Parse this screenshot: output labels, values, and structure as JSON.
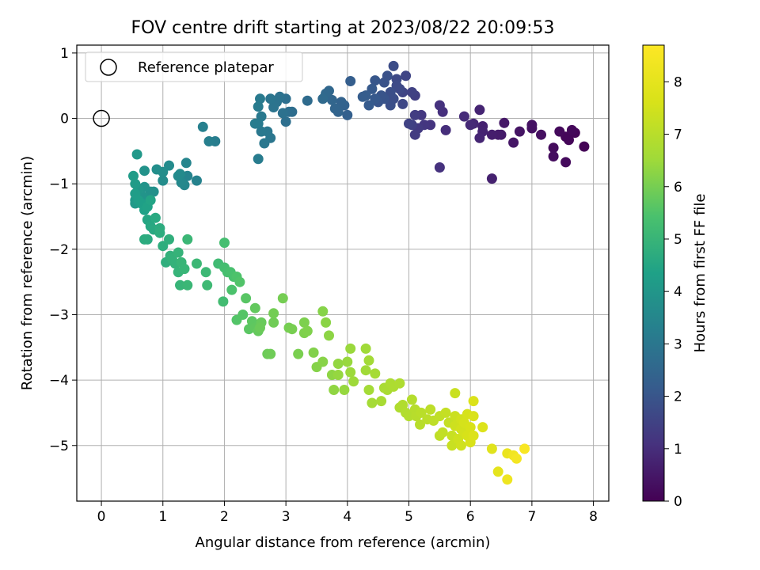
{
  "chart_data": {
    "type": "scatter",
    "title": "FOV centre drift starting at 2023/08/22 20:09:53",
    "xlabel": "Angular distance from reference (arcmin)",
    "ylabel": "Rotation from reference (arcmin)",
    "xlim": [
      -0.4,
      8.25
    ],
    "ylim": [
      -5.85,
      1.12
    ],
    "xticks": [
      "0",
      "1",
      "2",
      "3",
      "4",
      "5",
      "6",
      "7",
      "8"
    ],
    "yticks": [
      "1",
      "0",
      "−1",
      "−2",
      "−3",
      "−4",
      "−5"
    ],
    "grid": true,
    "legend": {
      "position": "top-left",
      "entries": [
        "Reference platepar"
      ]
    },
    "reference_point": {
      "x": 0,
      "y": 0
    },
    "colorbar": {
      "label": "Hours from first FF file",
      "colormap": "viridis",
      "range": [
        0,
        8.7
      ],
      "ticks": [
        "0",
        "1",
        "2",
        "3",
        "4",
        "5",
        "6",
        "7",
        "8"
      ]
    },
    "points": [
      [
        7.85,
        -0.43,
        0.05
      ],
      [
        7.7,
        -0.22,
        0.08
      ],
      [
        7.6,
        -0.33,
        0.1
      ],
      [
        7.55,
        -0.28,
        0.12
      ],
      [
        7.65,
        -0.18,
        0.15
      ],
      [
        7.45,
        -0.2,
        0.18
      ],
      [
        7.55,
        -0.67,
        0.2
      ],
      [
        7.35,
        -0.45,
        0.22
      ],
      [
        7.35,
        -0.58,
        0.25
      ],
      [
        7.15,
        -0.25,
        0.3
      ],
      [
        7,
        -0.15,
        0.35
      ],
      [
        7,
        -0.1,
        0.38
      ],
      [
        6.8,
        -0.2,
        0.42
      ],
      [
        6.7,
        -0.37,
        0.46
      ],
      [
        6.55,
        -0.07,
        0.5
      ],
      [
        6.5,
        -0.25,
        0.55
      ],
      [
        6.45,
        -0.25,
        0.6
      ],
      [
        6.35,
        -0.25,
        0.65
      ],
      [
        6.35,
        -0.92,
        0.7
      ],
      [
        6.2,
        -0.12,
        0.72
      ],
      [
        6.2,
        -0.2,
        0.75
      ],
      [
        6.15,
        0.13,
        0.78
      ],
      [
        6.15,
        -0.3,
        0.8
      ],
      [
        6.05,
        -0.08,
        0.85
      ],
      [
        6,
        -0.1,
        0.9
      ],
      [
        5.9,
        0.03,
        0.95
      ],
      [
        5.6,
        -0.18,
        1.0
      ],
      [
        5.55,
        0.1,
        1.05
      ],
      [
        5.5,
        0.2,
        1.08
      ],
      [
        5.5,
        -0.75,
        1.1
      ],
      [
        5.35,
        -0.1,
        1.15
      ],
      [
        5.25,
        -0.1,
        1.2
      ],
      [
        5.2,
        0.05,
        1.25
      ],
      [
        5.15,
        -0.15,
        1.3
      ],
      [
        5.1,
        -0.25,
        1.33
      ],
      [
        5.1,
        0.05,
        1.36
      ],
      [
        5.1,
        0.35,
        1.4
      ],
      [
        5.05,
        -0.1,
        1.44
      ],
      [
        5.05,
        0.4,
        1.47
      ],
      [
        5,
        -0.08,
        1.5
      ],
      [
        4.9,
        0.4,
        1.55
      ],
      [
        4.95,
        0.65,
        1.58
      ],
      [
        4.9,
        0.22,
        1.62
      ],
      [
        4.85,
        0.45,
        1.65
      ],
      [
        4.8,
        0.6,
        1.68
      ],
      [
        4.8,
        0.5,
        1.72
      ],
      [
        4.75,
        0.8,
        1.75
      ],
      [
        4.75,
        0.3,
        1.78
      ],
      [
        4.7,
        0.4,
        1.82
      ],
      [
        4.7,
        0.2,
        1.85
      ],
      [
        4.65,
        0.65,
        1.88
      ],
      [
        4.6,
        0.55,
        1.92
      ],
      [
        4.6,
        0.3,
        1.95
      ],
      [
        4.55,
        0.35,
        1.98
      ],
      [
        4.5,
        0.25,
        2.0
      ],
      [
        4.45,
        0.58,
        2.05
      ],
      [
        4.45,
        0.3,
        2.1
      ],
      [
        4.4,
        0.45,
        2.12
      ],
      [
        4.35,
        0.2,
        2.15
      ],
      [
        4.3,
        0.35,
        2.2
      ],
      [
        4.25,
        0.33,
        2.22
      ],
      [
        4.05,
        0.57,
        2.25
      ],
      [
        4,
        0.05,
        2.3
      ],
      [
        3.95,
        0.2,
        2.35
      ],
      [
        3.9,
        0.25,
        2.38
      ],
      [
        3.85,
        0.1,
        2.42
      ],
      [
        3.8,
        0.15,
        2.45
      ],
      [
        3.75,
        0.28,
        2.48
      ],
      [
        3.7,
        0.42,
        2.52
      ],
      [
        3.65,
        0.38,
        2.56
      ],
      [
        3.6,
        0.3,
        2.6
      ],
      [
        3.35,
        0.27,
        2.65
      ],
      [
        3.1,
        0.1,
        2.7
      ],
      [
        3.05,
        0.1,
        2.72
      ],
      [
        3,
        0.3,
        2.75
      ],
      [
        3,
        -0.05,
        2.78
      ],
      [
        2.95,
        0.08,
        2.82
      ],
      [
        2.9,
        0.33,
        2.85
      ],
      [
        2.85,
        0.25,
        2.88
      ],
      [
        2.8,
        0.17,
        2.92
      ],
      [
        2.75,
        0.3,
        2.95
      ],
      [
        2.75,
        -0.3,
        2.98
      ],
      [
        2.7,
        -0.2,
        3.0
      ],
      [
        2.65,
        -0.38,
        3.02
      ],
      [
        2.6,
        -0.2,
        3.05
      ],
      [
        2.6,
        0.03,
        3.08
      ],
      [
        2.58,
        0.3,
        3.1
      ],
      [
        2.55,
        -0.08,
        3.12
      ],
      [
        2.55,
        0.18,
        3.14
      ],
      [
        2.55,
        -0.62,
        3.16
      ],
      [
        2.5,
        -0.08,
        3.18
      ],
      [
        1.85,
        -0.35,
        3.2
      ],
      [
        1.75,
        -0.35,
        3.25
      ],
      [
        1.65,
        -0.13,
        3.3
      ],
      [
        1.55,
        -0.95,
        3.35
      ],
      [
        1.4,
        -0.88,
        3.4
      ],
      [
        1.38,
        -0.68,
        3.45
      ],
      [
        1.35,
        -1.02,
        3.5
      ],
      [
        1.3,
        -0.98,
        3.55
      ],
      [
        1.28,
        -0.85,
        3.6
      ],
      [
        1.25,
        -0.88,
        3.62
      ],
      [
        1.1,
        -0.72,
        3.65
      ],
      [
        1.0,
        -0.95,
        3.68
      ],
      [
        1.0,
        -0.82,
        3.7
      ],
      [
        0.9,
        -0.78,
        3.75
      ],
      [
        0.85,
        -1.12,
        3.8
      ],
      [
        0.8,
        -1.12,
        3.85
      ],
      [
        0.7,
        -0.8,
        3.88
      ],
      [
        0.7,
        -1.05,
        3.9
      ],
      [
        0.68,
        -1.2,
        3.95
      ],
      [
        0.6,
        -1.08,
        4.0
      ],
      [
        0.58,
        -0.55,
        4.05
      ],
      [
        0.55,
        -1.3,
        4.08
      ],
      [
        0.55,
        -1.25,
        4.1
      ],
      [
        0.55,
        -1.0,
        4.15
      ],
      [
        0.52,
        -0.88,
        4.2
      ],
      [
        0.55,
        -1.15,
        4.22
      ],
      [
        0.6,
        -1.25,
        4.25
      ],
      [
        0.65,
        -1.3,
        4.3
      ],
      [
        0.7,
        -1.4,
        4.35
      ],
      [
        0.75,
        -1.35,
        4.4
      ],
      [
        0.8,
        -1.25,
        4.45
      ],
      [
        0.75,
        -1.55,
        4.5
      ],
      [
        0.8,
        -1.65,
        4.55
      ],
      [
        0.85,
        -1.7,
        4.6
      ],
      [
        0.88,
        -1.52,
        4.62
      ],
      [
        0.75,
        -1.85,
        4.65
      ],
      [
        0.7,
        -1.85,
        4.68
      ],
      [
        0.95,
        -1.68,
        4.7
      ],
      [
        0.95,
        -1.75,
        4.72
      ],
      [
        1.0,
        -1.95,
        4.75
      ],
      [
        1.05,
        -2.2,
        4.78
      ],
      [
        1.1,
        -1.85,
        4.8
      ],
      [
        1.12,
        -2.1,
        4.85
      ],
      [
        1.15,
        -2.15,
        4.88
      ],
      [
        1.2,
        -2.22,
        4.9
      ],
      [
        1.25,
        -2.05,
        4.92
      ],
      [
        1.25,
        -2.35,
        4.95
      ],
      [
        1.28,
        -2.55,
        4.98
      ],
      [
        1.3,
        -2.2,
        5.0
      ],
      [
        1.35,
        -2.3,
        5.02
      ],
      [
        1.4,
        -2.55,
        5.05
      ],
      [
        1.4,
        -1.85,
        5.08
      ],
      [
        1.55,
        -2.22,
        5.1
      ],
      [
        1.7,
        -2.35,
        5.12
      ],
      [
        1.72,
        -2.55,
        5.15
      ],
      [
        1.9,
        -2.22,
        5.2
      ],
      [
        1.98,
        -2.8,
        5.25
      ],
      [
        2.0,
        -2.28,
        5.3
      ],
      [
        2.0,
        -1.9,
        5.32
      ],
      [
        2.05,
        -2.35,
        5.35
      ],
      [
        2.1,
        -2.35,
        5.38
      ],
      [
        2.15,
        -2.42,
        5.42
      ],
      [
        2.12,
        -2.62,
        5.45
      ],
      [
        2.2,
        -2.42,
        5.48
      ],
      [
        2.25,
        -2.5,
        5.52
      ],
      [
        2.2,
        -3.08,
        5.55
      ],
      [
        2.3,
        -3.0,
        5.58
      ],
      [
        2.35,
        -2.75,
        5.62
      ],
      [
        2.4,
        -3.22,
        5.65
      ],
      [
        2.45,
        -3.1,
        5.68
      ],
      [
        2.5,
        -3.2,
        5.72
      ],
      [
        2.5,
        -2.9,
        5.75
      ],
      [
        2.55,
        -3.25,
        5.78
      ],
      [
        2.6,
        -3.12,
        5.82
      ],
      [
        2.58,
        -3.2,
        5.85
      ],
      [
        2.7,
        -3.6,
        5.88
      ],
      [
        2.75,
        -3.6,
        5.9
      ],
      [
        2.8,
        -3.12,
        5.92
      ],
      [
        2.8,
        -2.98,
        5.95
      ],
      [
        2.95,
        -2.75,
        5.98
      ],
      [
        3.05,
        -3.2,
        6.0
      ],
      [
        3.1,
        -3.22,
        6.02
      ],
      [
        3.2,
        -3.6,
        6.05
      ],
      [
        3.3,
        -3.12,
        6.08
      ],
      [
        3.3,
        -3.28,
        6.1
      ],
      [
        3.35,
        -3.25,
        6.12
      ],
      [
        3.45,
        -3.58,
        6.15
      ],
      [
        3.5,
        -3.8,
        6.18
      ],
      [
        3.6,
        -2.95,
        6.2
      ],
      [
        3.6,
        -3.72,
        6.22
      ],
      [
        3.65,
        -3.12,
        6.25
      ],
      [
        3.7,
        -3.32,
        6.28
      ],
      [
        3.75,
        -3.92,
        6.3
      ],
      [
        3.78,
        -4.15,
        6.32
      ],
      [
        3.85,
        -3.75,
        6.35
      ],
      [
        3.85,
        -3.92,
        6.38
      ],
      [
        3.95,
        -4.15,
        6.4
      ],
      [
        4.0,
        -3.72,
        6.42
      ],
      [
        4.05,
        -3.52,
        6.45
      ],
      [
        4.05,
        -3.88,
        6.48
      ],
      [
        4.1,
        -4.02,
        6.5
      ],
      [
        4.3,
        -3.52,
        6.52
      ],
      [
        4.3,
        -3.85,
        6.55
      ],
      [
        4.35,
        -3.7,
        6.58
      ],
      [
        4.35,
        -4.15,
        6.6
      ],
      [
        4.4,
        -4.35,
        6.62
      ],
      [
        4.45,
        -3.9,
        6.65
      ],
      [
        4.55,
        -4.32,
        6.68
      ],
      [
        4.6,
        -4.12,
        6.7
      ],
      [
        4.65,
        -4.15,
        6.72
      ],
      [
        4.7,
        -4.05,
        6.75
      ],
      [
        4.75,
        -4.1,
        6.78
      ],
      [
        4.85,
        -4.05,
        6.8
      ],
      [
        4.85,
        -4.42,
        6.82
      ],
      [
        4.9,
        -4.38,
        6.85
      ],
      [
        4.95,
        -4.5,
        6.88
      ],
      [
        5.0,
        -4.55,
        6.9
      ],
      [
        5.05,
        -4.3,
        6.92
      ],
      [
        5.1,
        -4.45,
        6.95
      ],
      [
        5.12,
        -4.55,
        6.98
      ],
      [
        5.18,
        -4.68,
        7.0
      ],
      [
        5.2,
        -4.5,
        7.02
      ],
      [
        5.3,
        -4.6,
        7.05
      ],
      [
        5.35,
        -4.45,
        7.08
      ],
      [
        5.4,
        -4.62,
        7.1
      ],
      [
        5.5,
        -4.85,
        7.12
      ],
      [
        5.5,
        -4.55,
        7.15
      ],
      [
        5.55,
        -4.8,
        7.18
      ],
      [
        5.6,
        -4.5,
        7.22
      ],
      [
        5.65,
        -4.65,
        7.25
      ],
      [
        5.7,
        -4.85,
        7.28
      ],
      [
        5.7,
        -5.0,
        7.3
      ],
      [
        5.75,
        -4.2,
        7.33
      ],
      [
        5.75,
        -4.55,
        7.36
      ],
      [
        5.75,
        -4.7,
        7.4
      ],
      [
        5.8,
        -4.9,
        7.42
      ],
      [
        5.85,
        -5.0,
        7.45
      ],
      [
        5.85,
        -4.6,
        7.48
      ],
      [
        5.85,
        -4.75,
        7.5
      ],
      [
        5.9,
        -4.8,
        7.52
      ],
      [
        5.9,
        -4.65,
        7.55
      ],
      [
        5.95,
        -4.52,
        7.58
      ],
      [
        5.95,
        -4.85,
        7.6
      ],
      [
        6.0,
        -4.72,
        7.62
      ],
      [
        6.0,
        -4.95,
        7.65
      ],
      [
        6.05,
        -4.55,
        7.68
      ],
      [
        6.05,
        -4.32,
        7.7
      ],
      [
        6.05,
        -4.85,
        7.72
      ],
      [
        6.2,
        -4.72,
        7.75
      ],
      [
        6.35,
        -5.05,
        7.85
      ],
      [
        6.45,
        -5.4,
        8.0
      ],
      [
        6.6,
        -5.12,
        8.15
      ],
      [
        6.6,
        -5.52,
        8.25
      ],
      [
        6.7,
        -5.15,
        8.35
      ],
      [
        6.75,
        -5.2,
        8.45
      ],
      [
        6.88,
        -5.05,
        8.55
      ]
    ]
  }
}
